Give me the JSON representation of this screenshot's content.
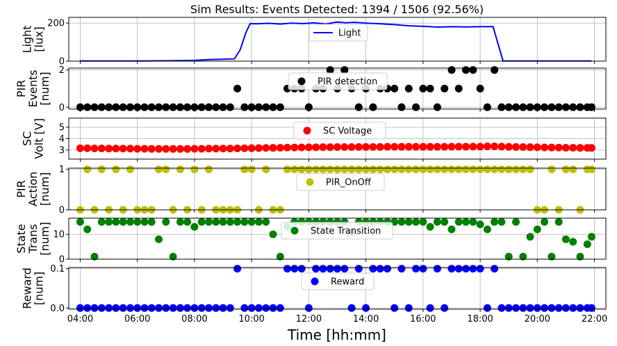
{
  "chart_data": {
    "type": "multi-panel",
    "title": "Sim Results: Events Detected: 1394 / 1506 (92.56%)",
    "xlabel": "Time [hh:mm]",
    "x_axis": {
      "range_hours": [
        3.6,
        22.4
      ],
      "ticks": [
        4,
        6,
        8,
        10,
        12,
        14,
        16,
        18,
        20,
        22
      ],
      "tick_labels": [
        "04:00",
        "06:00",
        "08:00",
        "10:00",
        "12:00",
        "14:00",
        "16:00",
        "18:00",
        "20:00",
        "22:00"
      ]
    },
    "grid": true,
    "legend_placement": "upper-center",
    "panels": [
      {
        "id": "light",
        "type": "line",
        "ylabel_lines": [
          "Light",
          "[lux]"
        ],
        "ylim": [
          0,
          230
        ],
        "yticks": [
          0,
          200
        ],
        "ytick_labels": [
          "0",
          "200"
        ],
        "series": [
          {
            "name": "Light",
            "color": "#0000ff",
            "x": [
              4.0,
              5.0,
              6.0,
              7.0,
              7.5,
              8.0,
              8.5,
              9.0,
              9.4,
              9.6,
              9.8,
              9.95,
              10.2,
              10.6,
              11.0,
              11.4,
              11.8,
              12.2,
              12.6,
              13.0,
              13.3,
              13.6,
              14.0,
              14.5,
              15.0,
              15.5,
              16.0,
              16.5,
              17.0,
              17.5,
              18.0,
              18.45,
              18.8,
              19.5,
              20.5,
              21.5,
              21.9
            ],
            "y": [
              1,
              1,
              1,
              2,
              3,
              4,
              8,
              10,
              12,
              60,
              150,
              197,
              196,
              199,
              195,
              200,
              197,
              201,
              195,
              206,
              201,
              204,
              200,
              196,
              192,
              186,
              183,
              179,
              181,
              180,
              181,
              181,
              1,
              1,
              1,
              1,
              1
            ]
          }
        ]
      },
      {
        "id": "pir_events",
        "type": "scatter",
        "ylabel_lines": [
          "PIR",
          "Events",
          "[num]"
        ],
        "ylim": [
          -0.1,
          2.1
        ],
        "yticks": [
          0,
          2
        ],
        "ytick_labels": [
          "0",
          "2"
        ],
        "series": [
          {
            "name": "PIR detection",
            "color": "#000000",
            "x": [
              4.0,
              4.25,
              4.5,
              4.75,
              5.0,
              5.25,
              5.5,
              5.75,
              6.0,
              6.25,
              6.5,
              6.75,
              7.0,
              7.25,
              7.5,
              7.75,
              8.0,
              8.25,
              8.5,
              8.75,
              9.0,
              9.25,
              9.5,
              9.75,
              10.0,
              10.25,
              10.5,
              10.75,
              11.0,
              11.25,
              11.5,
              11.75,
              12.0,
              12.25,
              12.5,
              12.75,
              13.0,
              13.25,
              13.5,
              13.75,
              14.0,
              14.25,
              14.5,
              14.75,
              15.0,
              15.25,
              15.5,
              15.75,
              16.0,
              16.25,
              16.5,
              16.75,
              17.0,
              17.25,
              17.5,
              17.75,
              18.0,
              18.25,
              18.5,
              18.75,
              19.0,
              19.25,
              19.5,
              19.75,
              20.0,
              20.25,
              20.5,
              20.75,
              21.0,
              21.25,
              21.5,
              21.75,
              21.9
            ],
            "y": [
              0,
              0,
              0,
              0,
              0,
              0,
              0,
              0,
              0,
              0,
              0,
              0,
              0,
              0,
              0,
              0,
              0,
              0,
              0,
              0,
              0,
              0,
              1,
              0,
              0,
              0,
              0,
              0,
              0,
              1,
              1,
              1,
              0,
              1,
              1,
              2,
              1,
              2,
              1,
              0,
              1,
              0,
              1,
              1,
              1,
              0,
              1,
              0,
              1,
              1,
              0,
              1,
              2,
              1,
              2,
              2,
              1,
              0,
              2,
              0,
              0,
              0,
              0,
              0,
              0,
              0,
              0,
              0,
              0,
              0,
              0,
              0,
              0
            ]
          }
        ]
      },
      {
        "id": "sc_volt",
        "type": "scatter",
        "ylabel_lines": [
          "SC",
          "Volt [V]"
        ],
        "ylim": [
          2.2,
          5.8
        ],
        "yticks": [
          3,
          4,
          5
        ],
        "ytick_labels": [
          "3",
          "4",
          "5"
        ],
        "series": [
          {
            "name": "SC Voltage",
            "color": "#ff0000",
            "x": [
              4.0,
              4.25,
              4.5,
              4.75,
              5.0,
              5.25,
              5.5,
              5.75,
              6.0,
              6.25,
              6.5,
              6.75,
              7.0,
              7.25,
              7.5,
              7.75,
              8.0,
              8.25,
              8.5,
              8.75,
              9.0,
              9.25,
              9.5,
              9.75,
              10.0,
              10.25,
              10.5,
              10.75,
              11.0,
              11.25,
              11.5,
              11.75,
              12.0,
              12.25,
              12.5,
              12.75,
              13.0,
              13.25,
              13.5,
              13.75,
              14.0,
              14.25,
              14.5,
              14.75,
              15.0,
              15.25,
              15.5,
              15.75,
              16.0,
              16.25,
              16.5,
              16.75,
              17.0,
              17.25,
              17.5,
              17.75,
              18.0,
              18.25,
              18.5,
              18.75,
              19.0,
              19.25,
              19.5,
              19.75,
              20.0,
              20.25,
              20.5,
              20.75,
              21.0,
              21.25,
              21.5,
              21.75,
              21.9
            ],
            "y": [
              3.15,
              3.15,
              3.14,
              3.14,
              3.13,
              3.13,
              3.12,
              3.12,
              3.11,
              3.11,
              3.1,
              3.1,
              3.1,
              3.1,
              3.1,
              3.1,
              3.11,
              3.11,
              3.12,
              3.12,
              3.13,
              3.13,
              3.14,
              3.15,
              3.16,
              3.17,
              3.18,
              3.19,
              3.2,
              3.21,
              3.22,
              3.23,
              3.24,
              3.24,
              3.25,
              3.25,
              3.26,
              3.26,
              3.26,
              3.27,
              3.27,
              3.27,
              3.27,
              3.28,
              3.28,
              3.28,
              3.28,
              3.28,
              3.28,
              3.28,
              3.28,
              3.28,
              3.29,
              3.29,
              3.29,
              3.3,
              3.3,
              3.32,
              3.32,
              3.3,
              3.28,
              3.27,
              3.26,
              3.25,
              3.24,
              3.23,
              3.22,
              3.21,
              3.2,
              3.2,
              3.19,
              3.19,
              3.18
            ]
          }
        ]
      },
      {
        "id": "pir_action",
        "type": "scatter",
        "ylabel_lines": [
          "PIR",
          "Action",
          "[num]"
        ],
        "ylim": [
          0,
          1.03
        ],
        "yticks": [
          0,
          1
        ],
        "ytick_labels": [
          "0",
          "1"
        ],
        "series": [
          {
            "name": "PIR_OnOff",
            "color": "#bfbf00",
            "x": [
              4.0,
              4.25,
              4.5,
              4.75,
              5.0,
              5.25,
              5.5,
              5.75,
              6.0,
              6.25,
              6.5,
              6.75,
              7.0,
              7.25,
              7.5,
              7.75,
              8.0,
              8.25,
              8.5,
              8.75,
              9.0,
              9.25,
              9.5,
              9.75,
              10.0,
              10.25,
              10.5,
              10.75,
              11.0,
              11.25,
              11.5,
              11.75,
              12.0,
              12.25,
              12.5,
              12.75,
              13.0,
              13.25,
              13.5,
              13.75,
              14.0,
              14.25,
              14.5,
              14.75,
              15.0,
              15.25,
              15.5,
              15.75,
              16.0,
              16.25,
              16.5,
              16.75,
              17.0,
              17.25,
              17.5,
              17.75,
              18.0,
              18.25,
              18.5,
              18.75,
              19.0,
              19.25,
              19.5,
              19.75,
              20.0,
              20.25,
              20.5,
              20.75,
              21.0,
              21.25,
              21.5,
              21.75,
              21.9
            ],
            "y": [
              0,
              1,
              0,
              1,
              0,
              1,
              0,
              1,
              0,
              0,
              0,
              1,
              1,
              0,
              1,
              0,
              1,
              0,
              1,
              0,
              0,
              0,
              0,
              1,
              1,
              0,
              1,
              0,
              0,
              1,
              1,
              1,
              1,
              1,
              1,
              1,
              1,
              1,
              1,
              1,
              1,
              1,
              1,
              1,
              1,
              1,
              1,
              1,
              1,
              1,
              1,
              1,
              1,
              1,
              1,
              1,
              1,
              1,
              1,
              1,
              1,
              1,
              1,
              1,
              0,
              0,
              1,
              0,
              1,
              1,
              0,
              1,
              1
            ]
          }
        ]
      },
      {
        "id": "state_trans",
        "type": "scatter",
        "ylabel_lines": [
          "State",
          "Trans",
          "[num]"
        ],
        "ylim": [
          0,
          16.5
        ],
        "yticks": [
          0,
          10
        ],
        "ytick_labels": [
          "0",
          "10"
        ],
        "series": [
          {
            "name": "State Transition",
            "color": "#008000",
            "x": [
              4.0,
              4.25,
              4.5,
              4.75,
              5.0,
              5.25,
              5.5,
              5.75,
              6.0,
              6.25,
              6.5,
              6.75,
              7.0,
              7.25,
              7.5,
              7.75,
              8.0,
              8.25,
              8.5,
              8.75,
              9.0,
              9.25,
              9.5,
              9.75,
              10.0,
              10.25,
              10.5,
              10.75,
              11.0,
              11.25,
              11.5,
              11.75,
              12.0,
              12.25,
              12.5,
              12.75,
              13.0,
              13.25,
              13.5,
              13.75,
              14.0,
              14.25,
              14.5,
              14.75,
              15.0,
              15.25,
              15.5,
              15.75,
              16.0,
              16.25,
              16.5,
              16.75,
              17.0,
              17.25,
              17.5,
              17.75,
              18.0,
              18.25,
              18.5,
              18.75,
              19.0,
              19.25,
              19.5,
              19.75,
              20.0,
              20.25,
              20.5,
              20.75,
              21.0,
              21.25,
              21.5,
              21.75,
              21.9
            ],
            "y": [
              15,
              12,
              1,
              15,
              15,
              15,
              15,
              15,
              15,
              15,
              15,
              8,
              15,
              1,
              15,
              15,
              13,
              15,
              15,
              15,
              15,
              15,
              15,
              15,
              15,
              15,
              15,
              10,
              1,
              13,
              15,
              15,
              15,
              15,
              15,
              15,
              15,
              15,
              11,
              15,
              15,
              15,
              15,
              15,
              15,
              15,
              15,
              15,
              15,
              13,
              15,
              15,
              12,
              15,
              15,
              15,
              14,
              12,
              15,
              15,
              1,
              15,
              1,
              9,
              12,
              15,
              1,
              15,
              8,
              7,
              1,
              6,
              9
            ]
          }
        ]
      },
      {
        "id": "reward",
        "type": "scatter",
        "ylabel_lines": [
          "Reward",
          "[num]"
        ],
        "ylim": [
          -0.003,
          0.103
        ],
        "yticks": [
          0.0,
          0.1
        ],
        "ytick_labels": [
          "0.0",
          "0.1"
        ],
        "series": [
          {
            "name": "Reward",
            "color": "#0000ff",
            "x": [
              4.0,
              4.25,
              4.5,
              4.75,
              5.0,
              5.25,
              5.5,
              5.75,
              6.0,
              6.25,
              6.5,
              6.75,
              7.0,
              7.25,
              7.5,
              7.75,
              8.0,
              8.25,
              8.5,
              8.75,
              9.0,
              9.25,
              9.5,
              9.75,
              10.0,
              10.25,
              10.5,
              10.75,
              11.0,
              11.25,
              11.5,
              11.75,
              12.0,
              12.25,
              12.5,
              12.75,
              13.0,
              13.25,
              13.5,
              13.75,
              14.0,
              14.25,
              14.5,
              14.75,
              15.0,
              15.25,
              15.5,
              15.75,
              16.0,
              16.25,
              16.5,
              16.75,
              17.0,
              17.25,
              17.5,
              17.75,
              18.0,
              18.25,
              18.5,
              18.75,
              19.0,
              19.25,
              19.5,
              19.75,
              20.0,
              20.25,
              20.5,
              20.75,
              21.0,
              21.25,
              21.5,
              21.75,
              21.9
            ],
            "y": [
              0,
              0,
              0,
              0,
              0,
              0,
              0,
              0,
              0,
              0,
              0,
              0,
              0,
              0,
              0,
              0,
              0,
              0,
              0,
              0,
              0,
              0,
              0.1,
              0,
              0,
              0,
              0,
              0,
              0,
              0.1,
              0.1,
              0.1,
              0,
              0.1,
              0.1,
              0.1,
              0.1,
              0.1,
              0,
              0.1,
              0,
              0.1,
              0.1,
              0.1,
              0,
              0.1,
              0,
              0.1,
              0.1,
              0,
              0.1,
              0,
              0.1,
              0.1,
              0.1,
              0.1,
              0.1,
              0,
              0.1,
              0,
              0,
              0,
              0,
              0,
              0,
              0,
              0,
              0,
              0,
              0,
              0,
              0,
              0
            ]
          }
        ]
      }
    ]
  }
}
